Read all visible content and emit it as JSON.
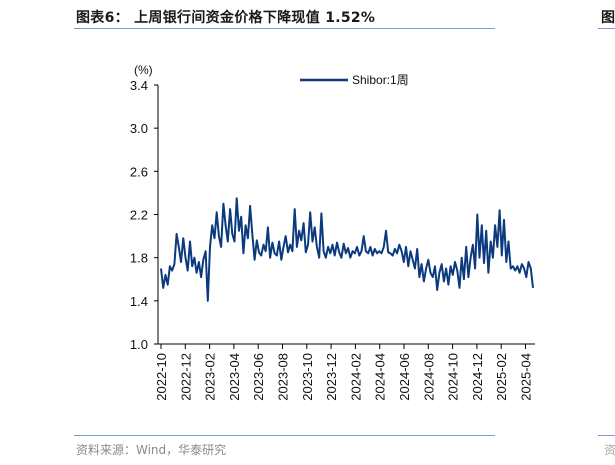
{
  "header": {
    "title": "图表6： 上周银行间资金价格下降现值 1.52%",
    "edge_fragment": "图"
  },
  "footer": {
    "source": "资料来源：Wind，华泰研究",
    "edge_fragment": "资"
  },
  "colors": {
    "series": "#0b3a7e",
    "rule": "#7f9cc3",
    "axis": "#000000",
    "source_text": "#8a8a8a"
  },
  "chart_data": {
    "type": "line",
    "title": "上周银行间资金价格下降现值 1.52%",
    "xlabel": "",
    "ylabel": "(%)",
    "ylim": [
      1.0,
      3.4
    ],
    "yticks": [
      "1.0",
      "1.4",
      "1.8",
      "2.2",
      "2.6",
      "3.0",
      "3.4"
    ],
    "xticks": [
      "2022-10",
      "2022-12",
      "2023-02",
      "2023-04",
      "2023-06",
      "2023-08",
      "2023-10",
      "2023-12",
      "2024-02",
      "2024-04",
      "2024-06",
      "2024-08",
      "2024-10",
      "2024-12",
      "2025-02",
      "2025-04"
    ],
    "grid": false,
    "legend_position": "top-center",
    "x_range": [
      "2022-10",
      "2025-05"
    ],
    "series": [
      {
        "name": "Shibor:1周",
        "frequency": "weekly (approx.)",
        "values": [
          1.7,
          1.52,
          1.64,
          1.55,
          1.72,
          1.68,
          1.74,
          2.02,
          1.9,
          1.76,
          1.98,
          1.8,
          1.68,
          1.95,
          1.72,
          1.8,
          1.66,
          1.76,
          1.62,
          1.78,
          1.86,
          1.4,
          1.9,
          2.1,
          1.98,
          2.22,
          2.0,
          1.9,
          2.3,
          2.1,
          1.95,
          2.25,
          2.02,
          1.95,
          2.35,
          2.05,
          2.18,
          1.84,
          2.1,
          1.98,
          2.28,
          2.02,
          1.78,
          1.96,
          1.85,
          1.82,
          1.92,
          1.86,
          2.08,
          1.8,
          1.94,
          1.84,
          1.82,
          1.95,
          1.78,
          1.9,
          2.0,
          1.85,
          1.92,
          1.86,
          2.25,
          1.9,
          2.05,
          1.96,
          2.12,
          1.85,
          1.92,
          2.22,
          1.95,
          2.08,
          1.9,
          1.8,
          2.21,
          1.86,
          1.8,
          1.9,
          1.84,
          1.92,
          1.82,
          1.94,
          1.85,
          1.8,
          1.93,
          1.84,
          1.89,
          1.8,
          1.86,
          1.84,
          1.9,
          1.82,
          1.86,
          2.0,
          1.86,
          1.84,
          1.9,
          1.82,
          1.88,
          1.84,
          1.86,
          1.84,
          1.9,
          2.05,
          1.85,
          1.84,
          1.82,
          1.88,
          1.84,
          1.92,
          1.86,
          1.76,
          1.9,
          1.72,
          1.86,
          1.78,
          1.7,
          1.88,
          1.62,
          1.74,
          1.58,
          1.7,
          1.78,
          1.66,
          1.62,
          1.72,
          1.5,
          1.66,
          1.74,
          1.58,
          1.7,
          1.55,
          1.72,
          1.64,
          1.76,
          1.68,
          1.52,
          1.8,
          1.6,
          1.9,
          1.62,
          1.8,
          1.92,
          1.7,
          2.2,
          1.8,
          2.1,
          1.75,
          2.05,
          1.66,
          1.95,
          1.8,
          2.1,
          1.9,
          2.24,
          1.82,
          2.15,
          1.76,
          1.95,
          1.7,
          1.72,
          1.68,
          1.72,
          1.66,
          1.74,
          1.7,
          1.62,
          1.76,
          1.7,
          1.52
        ]
      }
    ]
  }
}
